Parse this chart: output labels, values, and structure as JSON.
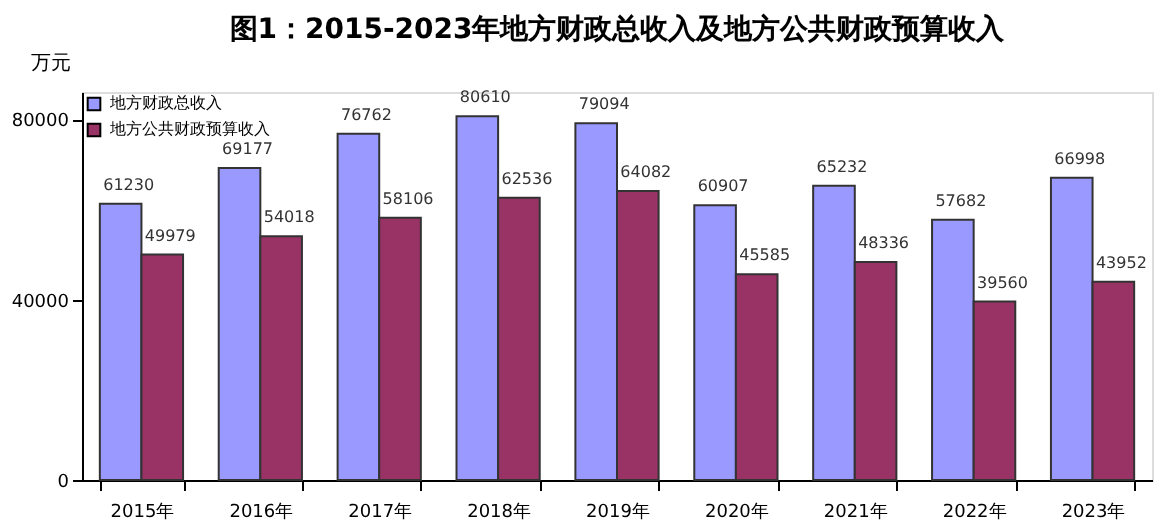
{
  "chart_data": {
    "type": "bar",
    "title": "图1：2015-2023年地方财政总收入及地方公共财政预算收入",
    "ylabel": "万元",
    "categories": [
      "2015年",
      "2016年",
      "2017年",
      "2018年",
      "2019年",
      "2020年",
      "2021年",
      "2022年",
      "2023年"
    ],
    "series": [
      {
        "name": "地方财政总收入",
        "color": "#9999ff",
        "values": [
          61230,
          69177,
          76762,
          80610,
          79094,
          60907,
          65232,
          57682,
          66998
        ]
      },
      {
        "name": "地方公共财政预算收入",
        "color": "#993366",
        "values": [
          49979,
          54018,
          58106,
          62536,
          64082,
          45585,
          48336,
          39560,
          43952
        ]
      }
    ],
    "ylim": [
      0,
      86000
    ],
    "yticks": [
      0,
      40000,
      80000
    ],
    "data_labels": true,
    "legend": "top left",
    "grid": false
  }
}
